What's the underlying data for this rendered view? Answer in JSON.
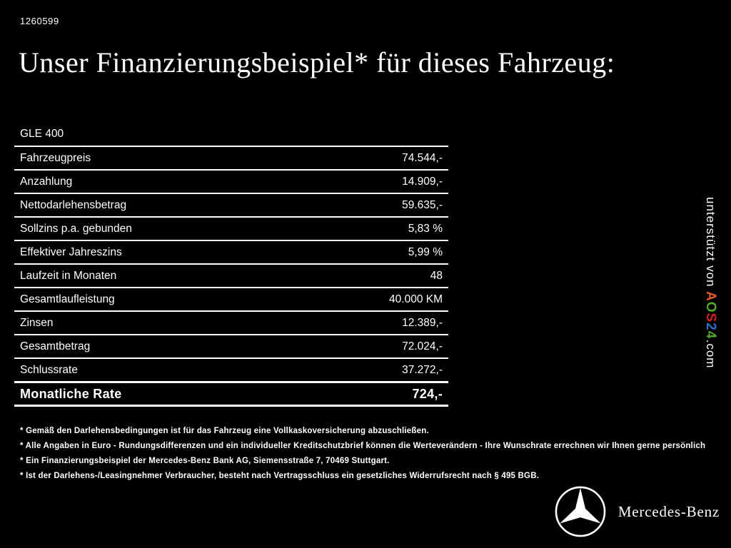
{
  "page": {
    "id": "1260599",
    "title": "Unser Finanzierungsbeispiel* für dieses Fahrzeug:"
  },
  "table": {
    "model": "GLE 400",
    "rows": [
      {
        "label": "Fahrzeugpreis",
        "value": "74.544,-"
      },
      {
        "label": "Anzahlung",
        "value": "14.909,-"
      },
      {
        "label": "Nettodarlehensbetrag",
        "value": "59.635,-"
      },
      {
        "label": "Sollzins p.a. gebunden",
        "value": "5,83 %"
      },
      {
        "label": "Effektiver Jahreszins",
        "value": "5,99 %"
      },
      {
        "label": "Laufzeit in Monaten",
        "value": "48"
      },
      {
        "label": "Gesamtlaufleistung",
        "value": "40.000 KM"
      },
      {
        "label": "Zinsen",
        "value": "12.389,-"
      },
      {
        "label": "Gesamtbetrag",
        "value": "72.024,-"
      },
      {
        "label": "Schlussrate",
        "value": "37.272,-"
      }
    ],
    "total_row": {
      "label": "Monatliche Rate",
      "value": "724,-"
    }
  },
  "footnotes": [
    "* Gemäß den Darlehensbedingungen ist für das Fahrzeug eine Vollkaskoversicherung abzuschließen.",
    "* Alle Angaben in Euro - Rundungsdifferenzen und ein individueller Kreditschutzbrief können die Werteverändern - Ihre Wunschrate errechnen wir Ihnen gerne persönlich",
    "* Ein Finanzierungsbeispiel der Mercedes-Benz Bank AG, Siemensstraße 7, 70469 Stuttgart.",
    "* Ist der Darlehens-/Leasingnehmer Verbraucher, besteht nach Vertragsschluss ein gesetzliches Widerrufsrecht nach § 495 BGB."
  ],
  "credit": {
    "prefix": "unterstützt von ",
    "suffix": ".com",
    "logo_letters": [
      {
        "char": "A",
        "color": "#e05a2b"
      },
      {
        "char": "O",
        "color": "#55a82d"
      },
      {
        "char": "S",
        "color": "#d21f26"
      },
      {
        "char": "2",
        "color": "#2a6fc9"
      },
      {
        "char": "4",
        "color": "#55a82d"
      }
    ]
  },
  "brand": {
    "name": "Mercedes-Benz"
  }
}
